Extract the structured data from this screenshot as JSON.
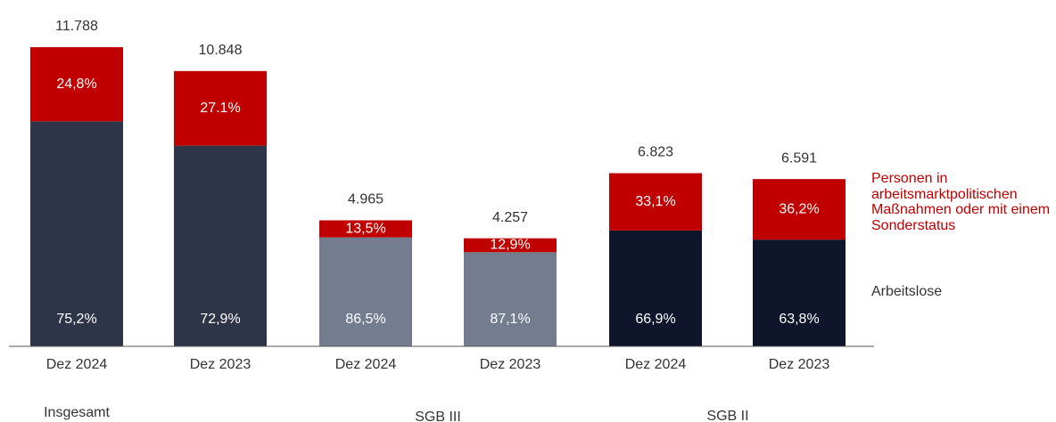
{
  "chart_data": {
    "type": "stacked_bar",
    "categories": [
      "Dez 2024",
      "Dez 2023",
      "Dez 2024",
      "Dez 2023",
      "Dez 2024",
      "Dez 2023"
    ],
    "groups": [
      {
        "name": "Insgesamt",
        "members": [
          0,
          1
        ]
      },
      {
        "name": "SGB III",
        "members": [
          2,
          3
        ]
      },
      {
        "name": "SGB II",
        "members": [
          4,
          5
        ]
      }
    ],
    "totals": {
      "values": [
        11788,
        10848,
        4965,
        4257,
        6823,
        6591
      ],
      "value_labels": [
        "11.788",
        "10.848",
        "4.965",
        "4.257",
        "6.823",
        "6.591"
      ]
    },
    "series": [
      {
        "name": "Arbeitslose",
        "colors": [
          "#2e3549",
          "#2e3549",
          "#737d8f",
          "#737d8f",
          "#0f152a",
          "#0f152a"
        ],
        "values": [
          75.2,
          72.9,
          86.5,
          87.1,
          66.9,
          63.8
        ],
        "value_labels": [
          "75,2%",
          "72,9%",
          "86,5%",
          "87,1%",
          "66,9%",
          "63,8%"
        ]
      },
      {
        "name": "Personen in arbeitsmarktpolitischen Maßnahmen oder mit einem Sonderstatus",
        "colors": [
          "#c00000",
          "#c00000",
          "#c00000",
          "#c00000",
          "#c00000",
          "#c00000"
        ],
        "values": [
          24.8,
          27.1,
          13.5,
          12.9,
          33.1,
          36.2
        ],
        "value_labels": [
          "24,8%",
          "27.1%",
          "13,5%",
          "12,9%",
          "33,1%",
          "36,2%"
        ]
      }
    ]
  }
}
